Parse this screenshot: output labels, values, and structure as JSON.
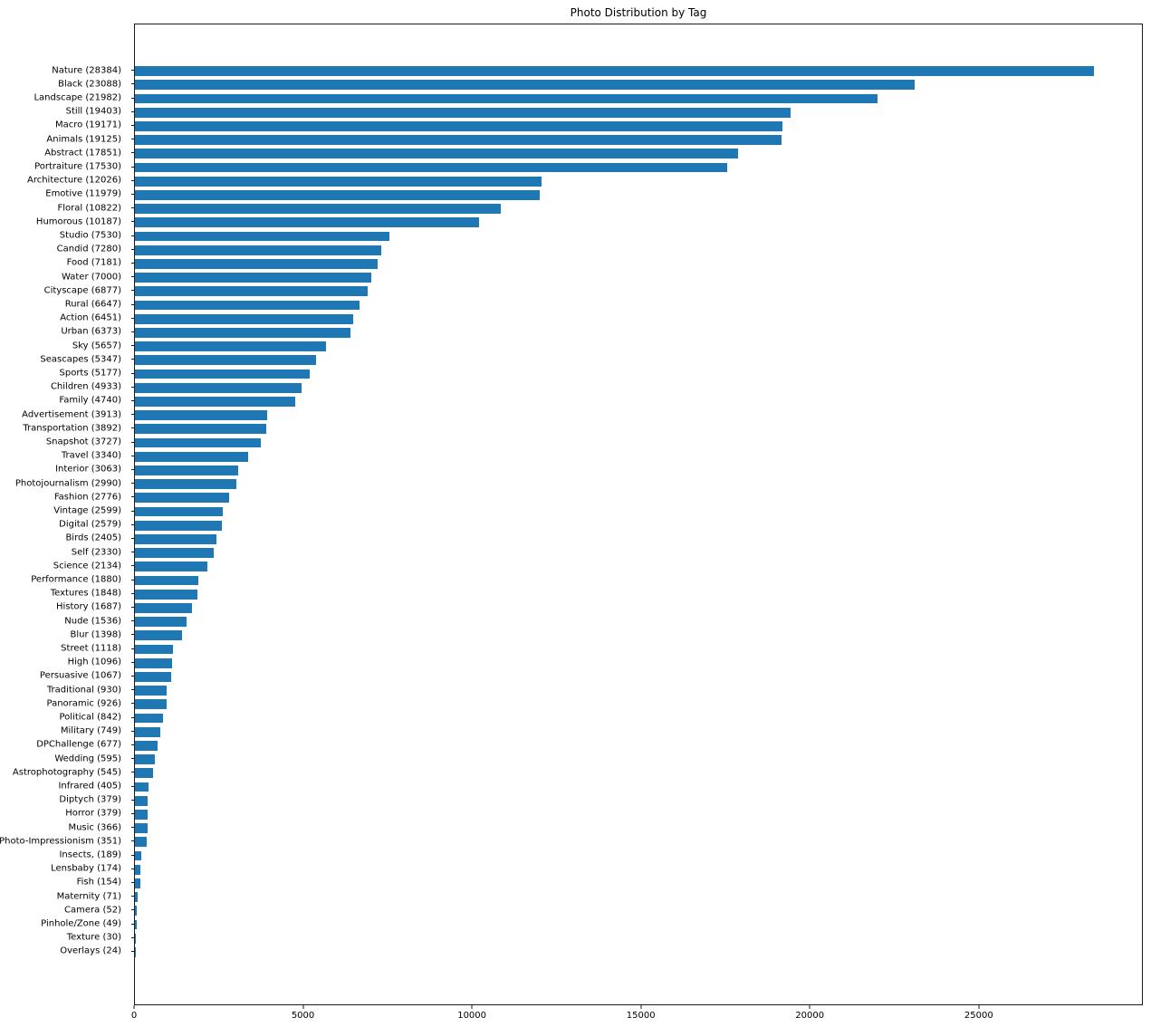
{
  "chart_data": {
    "type": "bar",
    "orientation": "horizontal",
    "title": "Photo Distribution by Tag",
    "xlabel": "",
    "ylabel": "",
    "bar_color": "#1f77b4",
    "grid": false,
    "legend": null,
    "xlim": [
      0,
      29803
    ],
    "x_ticks": [
      0,
      5000,
      10000,
      15000,
      20000,
      25000
    ],
    "bars": [
      {
        "label": "Nature (28384)",
        "value": 28384
      },
      {
        "label": "Black (23088)",
        "value": 23088
      },
      {
        "label": "Landscape (21982)",
        "value": 21982
      },
      {
        "label": "Still (19403)",
        "value": 19403
      },
      {
        "label": "Macro (19171)",
        "value": 19171
      },
      {
        "label": "Animals (19125)",
        "value": 19125
      },
      {
        "label": "Abstract (17851)",
        "value": 17851
      },
      {
        "label": "Portraiture (17530)",
        "value": 17530
      },
      {
        "label": "Architecture (12026)",
        "value": 12026
      },
      {
        "label": "Emotive (11979)",
        "value": 11979
      },
      {
        "label": "Floral (10822)",
        "value": 10822
      },
      {
        "label": "Humorous (10187)",
        "value": 10187
      },
      {
        "label": "Studio (7530)",
        "value": 7530
      },
      {
        "label": "Candid (7280)",
        "value": 7280
      },
      {
        "label": "Food (7181)",
        "value": 7181
      },
      {
        "label": "Water (7000)",
        "value": 7000
      },
      {
        "label": "Cityscape (6877)",
        "value": 6877
      },
      {
        "label": "Rural (6647)",
        "value": 6647
      },
      {
        "label": "Action (6451)",
        "value": 6451
      },
      {
        "label": "Urban (6373)",
        "value": 6373
      },
      {
        "label": "Sky (5657)",
        "value": 5657
      },
      {
        "label": "Seascapes (5347)",
        "value": 5347
      },
      {
        "label": "Sports (5177)",
        "value": 5177
      },
      {
        "label": "Children (4933)",
        "value": 4933
      },
      {
        "label": "Family (4740)",
        "value": 4740
      },
      {
        "label": "Advertisement (3913)",
        "value": 3913
      },
      {
        "label": "Transportation (3892)",
        "value": 3892
      },
      {
        "label": "Snapshot (3727)",
        "value": 3727
      },
      {
        "label": "Travel (3340)",
        "value": 3340
      },
      {
        "label": "Interior (3063)",
        "value": 3063
      },
      {
        "label": "Photojournalism (2990)",
        "value": 2990
      },
      {
        "label": "Fashion (2776)",
        "value": 2776
      },
      {
        "label": "Vintage (2599)",
        "value": 2599
      },
      {
        "label": "Digital (2579)",
        "value": 2579
      },
      {
        "label": "Birds (2405)",
        "value": 2405
      },
      {
        "label": "Self (2330)",
        "value": 2330
      },
      {
        "label": "Science (2134)",
        "value": 2134
      },
      {
        "label": "Performance (1880)",
        "value": 1880
      },
      {
        "label": "Textures (1848)",
        "value": 1848
      },
      {
        "label": "History (1687)",
        "value": 1687
      },
      {
        "label": "Nude (1536)",
        "value": 1536
      },
      {
        "label": "Blur (1398)",
        "value": 1398
      },
      {
        "label": "Street (1118)",
        "value": 1118
      },
      {
        "label": "High (1096)",
        "value": 1096
      },
      {
        "label": "Persuasive (1067)",
        "value": 1067
      },
      {
        "label": "Traditional (930)",
        "value": 930
      },
      {
        "label": "Panoramic (926)",
        "value": 926
      },
      {
        "label": "Political (842)",
        "value": 842
      },
      {
        "label": "Military (749)",
        "value": 749
      },
      {
        "label": "DPChallenge (677)",
        "value": 677
      },
      {
        "label": "Wedding (595)",
        "value": 595
      },
      {
        "label": "Astrophotography (545)",
        "value": 545
      },
      {
        "label": "Infrared (405)",
        "value": 405
      },
      {
        "label": "Diptych (379)",
        "value": 379
      },
      {
        "label": "Horror (379)",
        "value": 379
      },
      {
        "label": "Music (366)",
        "value": 366
      },
      {
        "label": "Photo-Impressionism (351)",
        "value": 351
      },
      {
        "label": "Insects, (189)",
        "value": 189
      },
      {
        "label": "Lensbaby (174)",
        "value": 174
      },
      {
        "label": "Fish (154)",
        "value": 154
      },
      {
        "label": "Maternity (71)",
        "value": 71
      },
      {
        "label": "Camera (52)",
        "value": 52
      },
      {
        "label": "Pinhole/Zone (49)",
        "value": 49
      },
      {
        "label": "Texture (30)",
        "value": 30
      },
      {
        "label": "Overlays (24)",
        "value": 24
      }
    ]
  }
}
